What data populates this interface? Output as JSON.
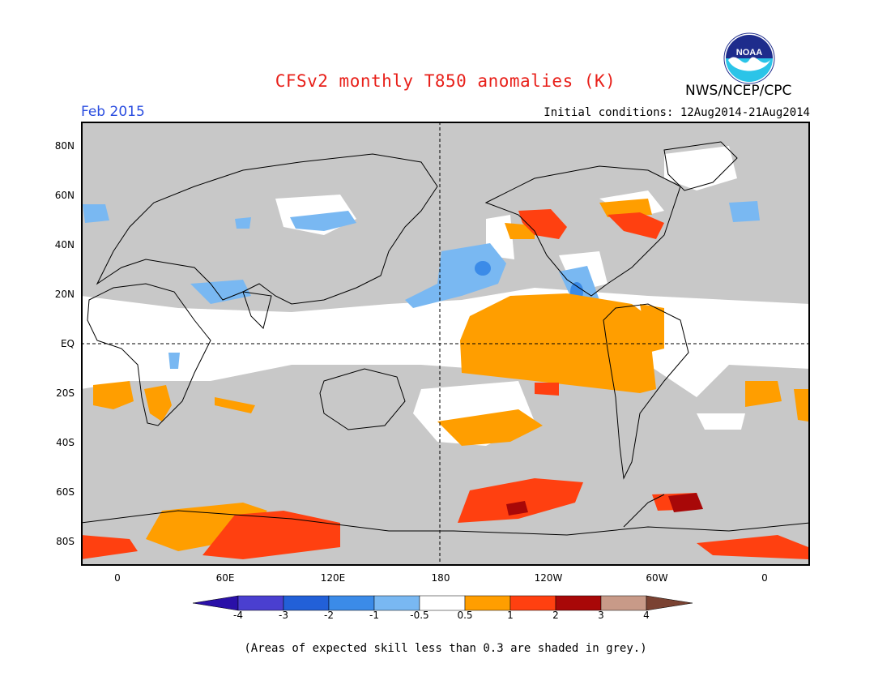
{
  "header": {
    "title": "CFSv2 monthly T850 anomalies (K)",
    "agency": "NWS/NCEP/CPC",
    "logo_text": "NOAA",
    "period": "Feb 2015",
    "initial_conditions": "Initial conditions: 12Aug2014-21Aug2014"
  },
  "map": {
    "lat_labels": [
      "80N",
      "60N",
      "40N",
      "20N",
      "EQ",
      "20S",
      "40S",
      "60S",
      "80S"
    ],
    "lon_labels": [
      "0",
      "60E",
      "120E",
      "180",
      "120W",
      "60W",
      "0"
    ],
    "background_grey": "#c8c8c8"
  },
  "colorbar": {
    "ticks": [
      "-4",
      "-3",
      "-2",
      "-1",
      "-0.5",
      "0.5",
      "1",
      "2",
      "3",
      "4"
    ],
    "colors": [
      "#2a10a8",
      "#4a3fd0",
      "#2260d8",
      "#3b8be8",
      "#79b8f2",
      "#ffffff",
      "#ff9e00",
      "#ff4010",
      "#a80808",
      "#c89a88",
      "#7a4232"
    ]
  },
  "footnote": "(Areas of expected skill less than 0.3 are shaded in grey.)"
}
